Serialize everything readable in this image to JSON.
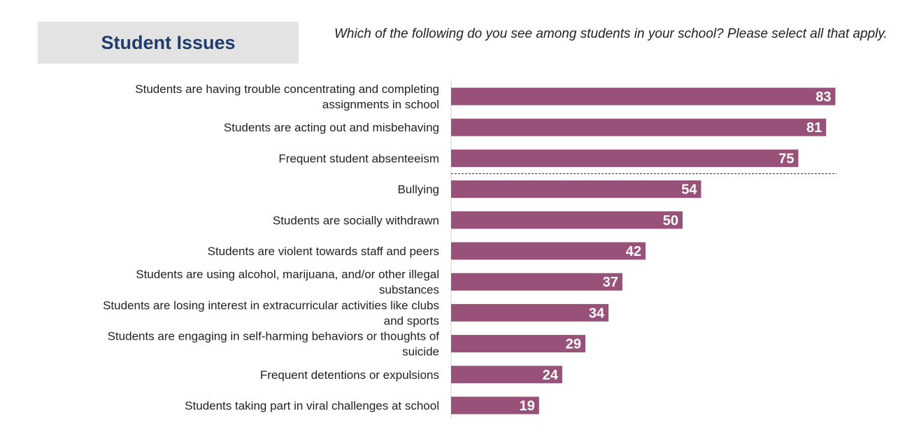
{
  "header": {
    "title": "Student Issues",
    "question": "Which of the following do you see among students in your school? Please select all that apply."
  },
  "colors": {
    "bar": "#985279",
    "title_box": "#e3e3e3",
    "title_text": "#1f3d6b"
  },
  "chart_data": {
    "type": "bar",
    "orientation": "horizontal",
    "categories": [
      [
        "Students are having trouble concentrating and completing",
        "assignments in school"
      ],
      [
        "Students are acting out and misbehaving"
      ],
      [
        "Frequent student absenteeism"
      ],
      [
        "Bullying"
      ],
      [
        "Students are socially withdrawn"
      ],
      [
        "Students are violent towards staff and peers"
      ],
      [
        "Students are using alcohol, marijuana, and/or other illegal",
        "substances"
      ],
      [
        "Students are losing interest in extracurricular activities like clubs",
        "and sports"
      ],
      [
        "Students are engaging in self-harming behaviors or thoughts of",
        "suicide"
      ],
      [
        "Frequent detentions or expulsions"
      ],
      [
        "Students taking part in viral challenges at school"
      ]
    ],
    "values": [
      83,
      81,
      75,
      54,
      50,
      42,
      37,
      34,
      29,
      24,
      19
    ],
    "xlim": [
      0,
      100
    ],
    "grid": false,
    "divider_after_index": 2
  }
}
